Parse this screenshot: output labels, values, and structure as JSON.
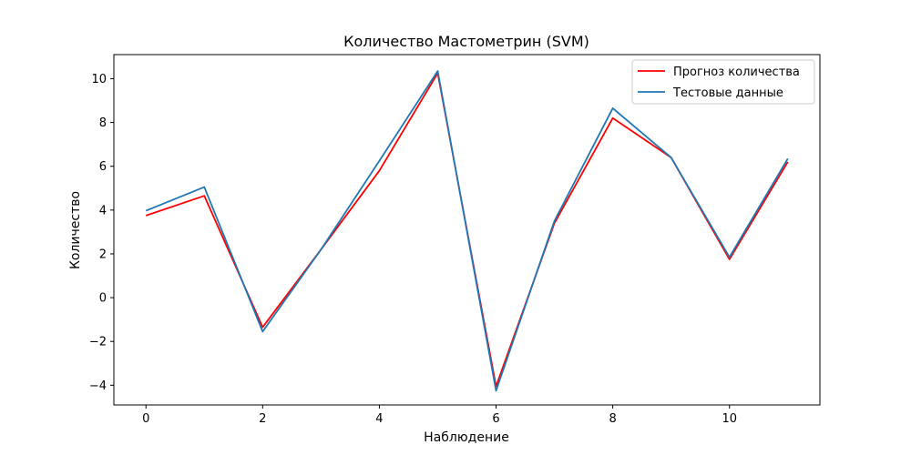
{
  "chart_data": {
    "type": "line",
    "title": "Количество Мастометрин  (SVM)",
    "xlabel": "Наблюдение",
    "ylabel": "Количество",
    "x": [
      0,
      1,
      2,
      3,
      4,
      5,
      6,
      7,
      8,
      9,
      10,
      11
    ],
    "xlim": [
      -0.55,
      11.55
    ],
    "ylim": [
      -4.9,
      11.1
    ],
    "xticks": [
      0,
      2,
      4,
      6,
      8,
      10
    ],
    "yticks": [
      -4,
      -2,
      0,
      2,
      4,
      6,
      8,
      10
    ],
    "xtick_labels": [
      "0",
      "2",
      "4",
      "6",
      "8",
      "10"
    ],
    "ytick_labels": [
      "−4",
      "−2",
      "0",
      "2",
      "4",
      "6",
      "8",
      "10"
    ],
    "grid": false,
    "legend_position": "top-right",
    "series": [
      {
        "name": "Прогноз количества",
        "color": "#ff0000",
        "values": [
          3.75,
          4.65,
          -1.35,
          2.2,
          5.8,
          10.25,
          -4.05,
          3.4,
          8.2,
          6.4,
          1.75,
          6.2
        ]
      },
      {
        "name": "Тестовые данные",
        "color": "#1f77b4",
        "values": [
          3.97,
          5.05,
          -1.55,
          2.2,
          6.25,
          10.35,
          -4.25,
          3.5,
          8.65,
          6.4,
          1.85,
          6.35
        ]
      }
    ]
  }
}
